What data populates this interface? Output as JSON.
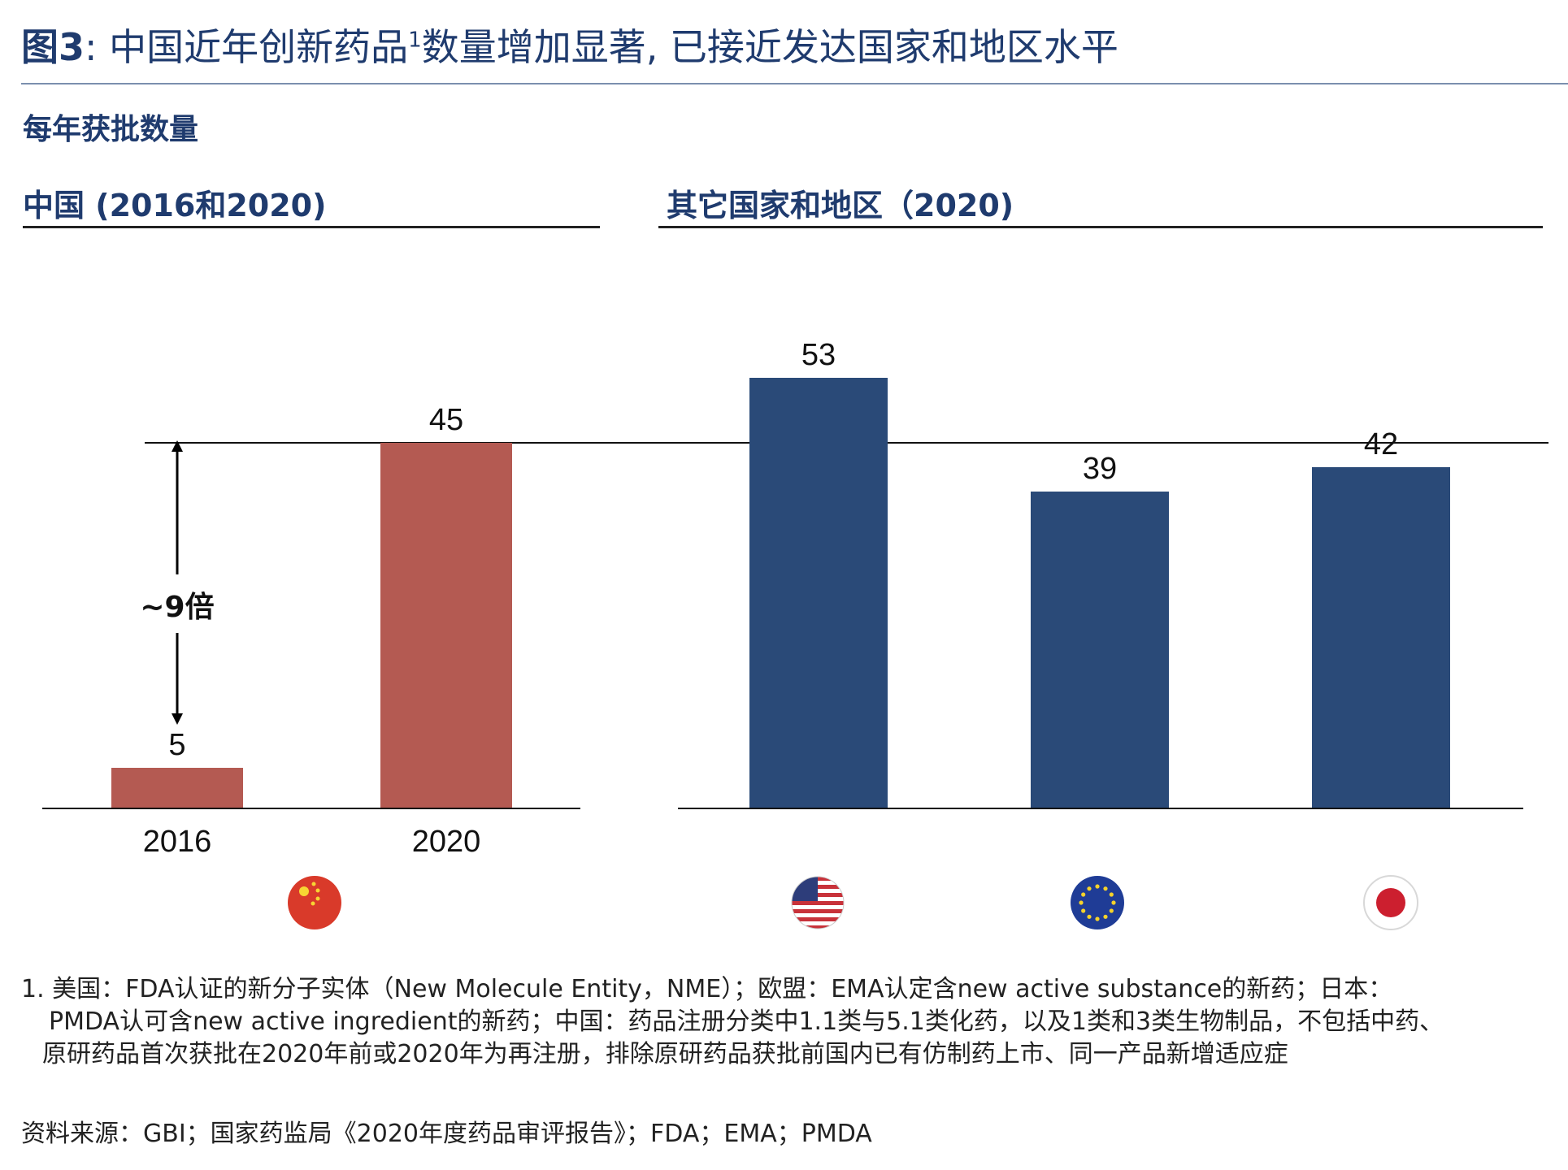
{
  "title": {
    "figure_label": "图3",
    "text_before": ": 中国近年创新药品",
    "superscript": "1",
    "text_after": "数量增加显著, 已接近发达国家和地区水平"
  },
  "subtitle": "每年获批数量",
  "panels": {
    "china_title": "中国 (2016和2020)",
    "others_title": "其它国家和地区（2020)"
  },
  "chart_data": [
    {
      "type": "bar",
      "panel": "中国 (2016和2020)",
      "categories": [
        "2016",
        "2020"
      ],
      "values": [
        5,
        45
      ],
      "color": "#b45a52",
      "ylim": [
        0,
        55
      ],
      "annotation": {
        "label": "~9倍",
        "from": 5,
        "to": 45
      },
      "reference_line": 45
    },
    {
      "type": "bar",
      "panel": "其它国家和地区（2020)",
      "categories": [
        "",
        "",
        ""
      ],
      "values": [
        53,
        39,
        42
      ],
      "color": "#2a4a78",
      "ylim": [
        0,
        55
      ],
      "reference_line": 45
    }
  ],
  "flags": [
    "china-flag-icon",
    "usa-flag-icon",
    "eu-flag-icon",
    "japan-flag-icon"
  ],
  "footnote": {
    "line1": "1. 美国：FDA认证的新分子实体（New Molecule Entity，NME）；欧盟：EMA认定含new active substance的新药；日本：",
    "line2": "PMDA认可含new active ingredient的新药；中国：药品注册分类中1.1类与5.1类化药，以及1类和3类生物制品，不包括中药、",
    "line3": "原研药品首次获批在2020年前或2020年为再注册，排除原研药品获批前国内已有仿制药上市、同一产品新增适应症"
  },
  "source": "资料来源：GBI；国家药监局《2020年度药品审评报告》；FDA；EMA；PMDA"
}
